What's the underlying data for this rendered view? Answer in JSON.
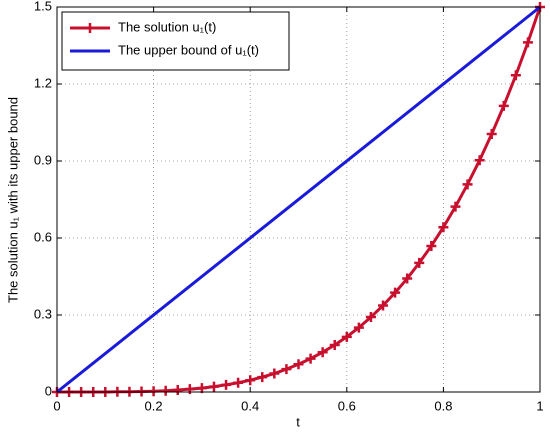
{
  "chart_data": {
    "type": "line",
    "xlabel": "t",
    "ylabel": "The solution u₁ with its upper bound",
    "xlim": [
      0,
      1
    ],
    "ylim": [
      0,
      1.5
    ],
    "xticks": [
      0,
      0.2,
      0.4,
      0.6,
      0.8,
      1
    ],
    "yticks": [
      0,
      0.3,
      0.6,
      0.9,
      1.2,
      1.5
    ],
    "grid": true,
    "legend": "upper left",
    "series": [
      {
        "name": "The solution u₁(t)",
        "color": "#c8102e",
        "marker": "+",
        "x": [
          0,
          0.025,
          0.05,
          0.075,
          0.1,
          0.125,
          0.15,
          0.175,
          0.2,
          0.225,
          0.25,
          0.275,
          0.3,
          0.325,
          0.35,
          0.375,
          0.4,
          0.425,
          0.45,
          0.475,
          0.5,
          0.525,
          0.55,
          0.575,
          0.6,
          0.625,
          0.65,
          0.675,
          0.7,
          0.725,
          0.75,
          0.775,
          0.8,
          0.825,
          0.85,
          0.875,
          0.9,
          0.925,
          0.95,
          0.975,
          1
        ],
        "values": [
          0,
          0,
          0,
          0,
          0,
          0.001,
          0.001,
          0.002,
          0.003,
          0.005,
          0.008,
          0.011,
          0.015,
          0.021,
          0.028,
          0.036,
          0.046,
          0.058,
          0.072,
          0.089,
          0.108,
          0.13,
          0.155,
          0.183,
          0.215,
          0.251,
          0.292,
          0.337,
          0.387,
          0.442,
          0.503,
          0.569,
          0.642,
          0.722,
          0.809,
          0.903,
          1.005,
          1.115,
          1.234,
          1.362,
          1.5
        ]
      },
      {
        "name": "The upper bound of u₁(t)",
        "color": "#1a1adb",
        "x": [
          0,
          1
        ],
        "values": [
          0,
          1.5
        ]
      }
    ]
  }
}
